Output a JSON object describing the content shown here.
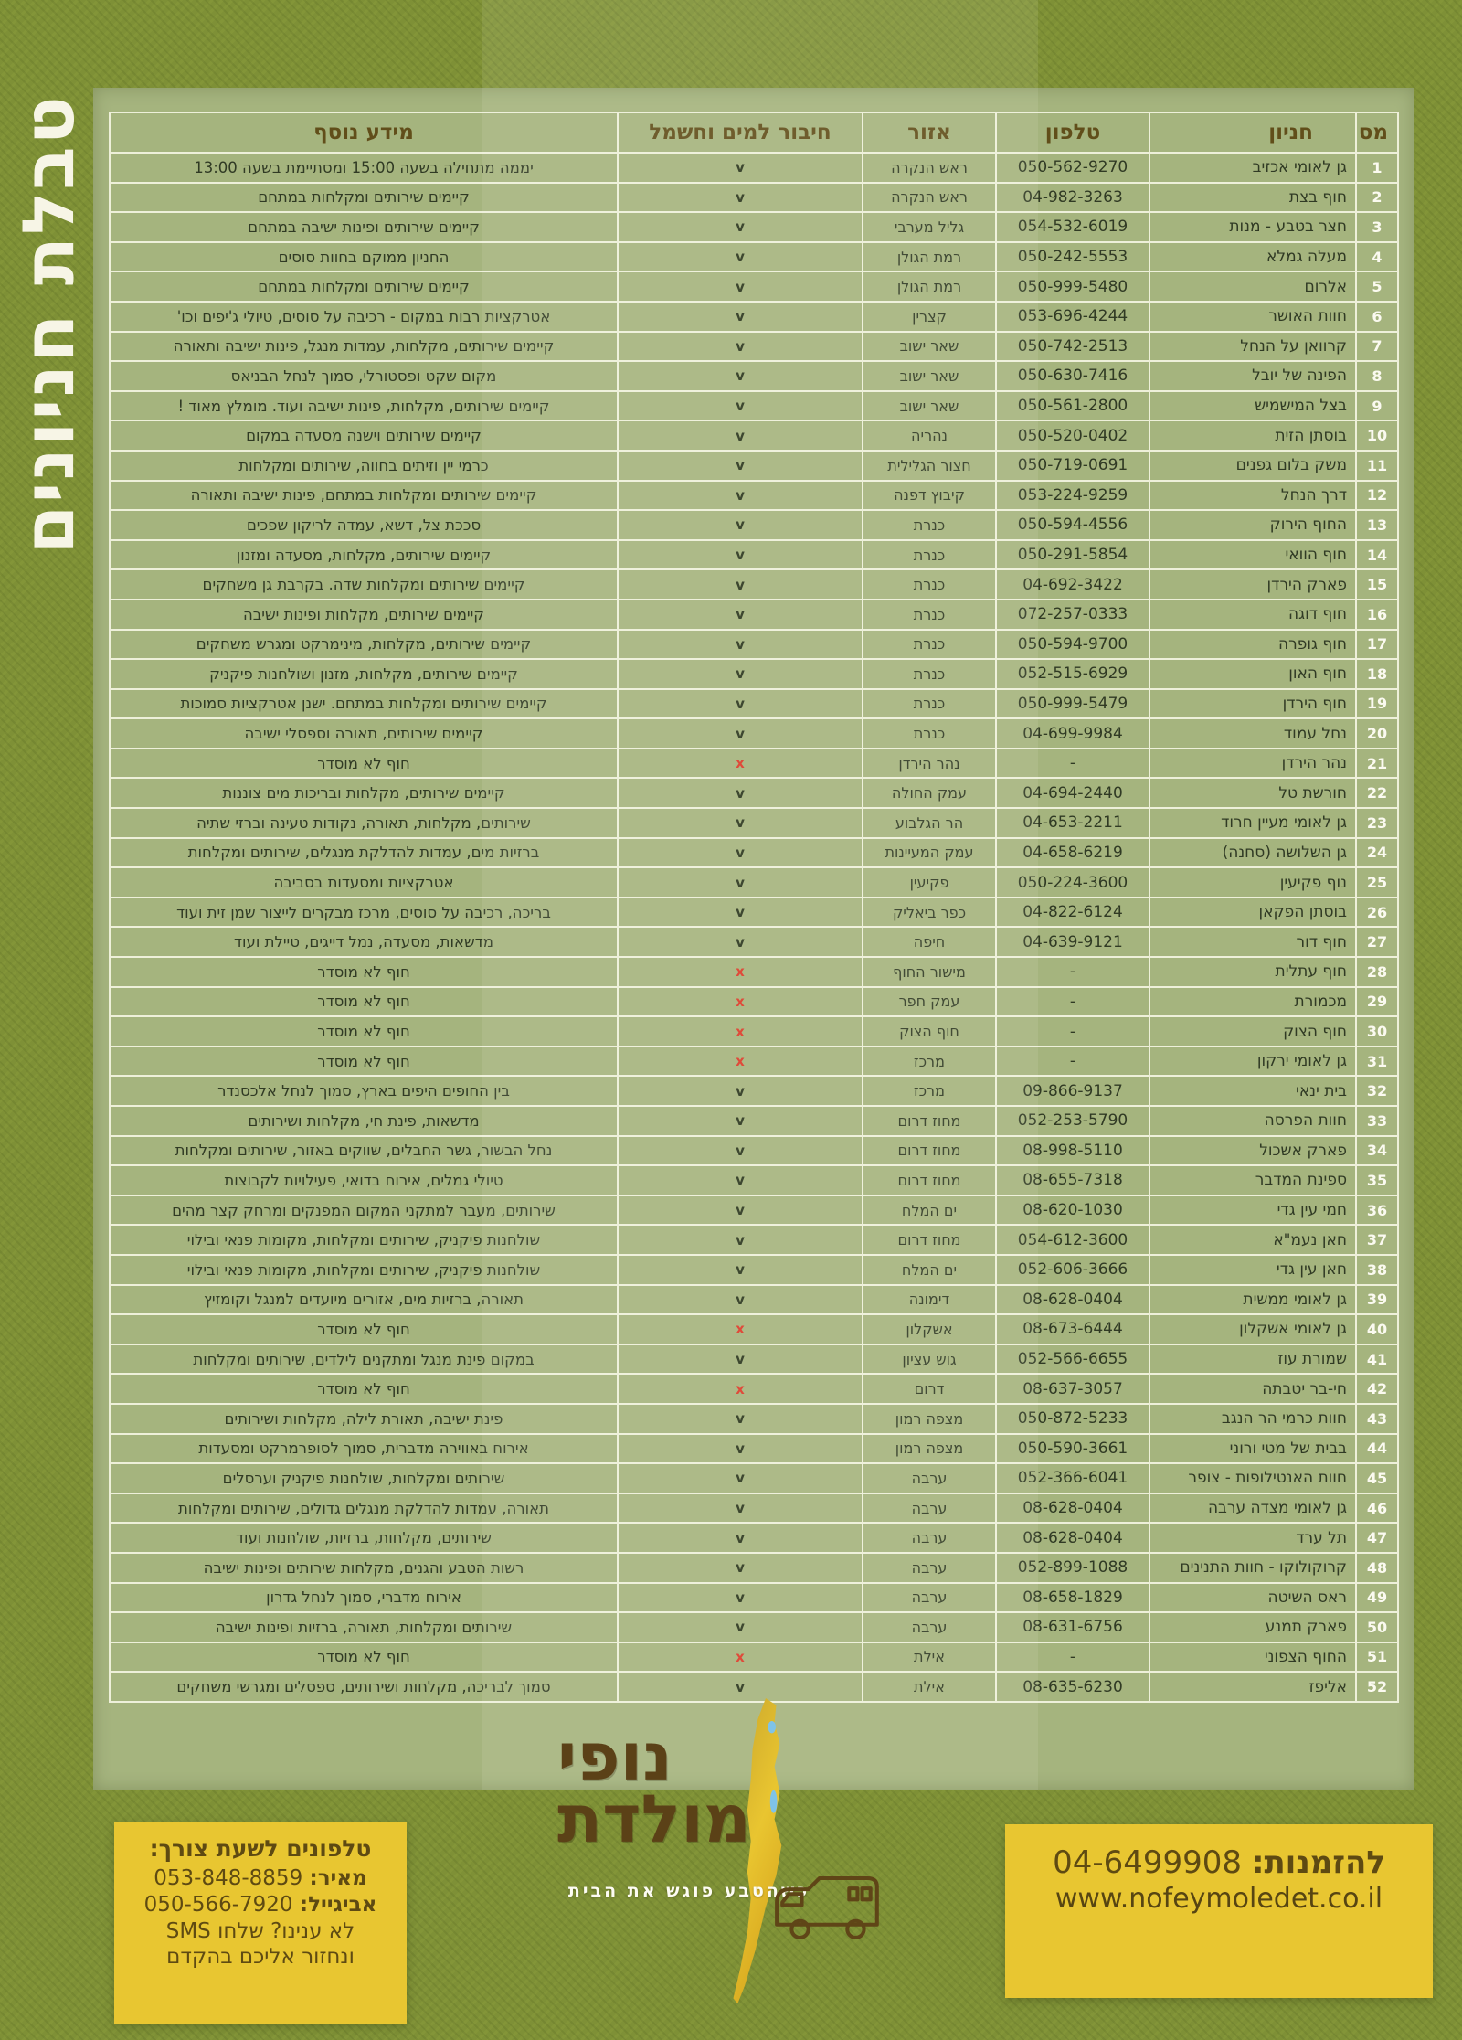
{
  "page": {
    "side_title": "טבלת חניונים"
  },
  "table": {
    "headers": {
      "num": "מס",
      "name": "חניון",
      "phone": "טלפון",
      "region": "אזור",
      "hookup": "חיבור למים וחשמל",
      "info": "מידע נוסף"
    },
    "marks": {
      "yes": "v",
      "no": "x"
    },
    "rows": [
      {
        "num": "1",
        "name": "גן לאומי אכזיב",
        "phone": "050-562-9270",
        "region": "ראש הנקרה",
        "hookup": "v",
        "info": "יממה מתחילה בשעה 15:00 ומסתיימת בשעה 13:00"
      },
      {
        "num": "2",
        "name": "חוף בצת",
        "phone": "04-982-3263",
        "region": "ראש הנקרה",
        "hookup": "v",
        "info": "קיימים שירותים ומקלחות במתחם"
      },
      {
        "num": "3",
        "name": "חצר בטבע - מנות",
        "phone": "054-532-6019",
        "region": "גליל מערבי",
        "hookup": "v",
        "info": "קיימים שירותים ופינות ישיבה במתחם"
      },
      {
        "num": "4",
        "name": "מעלה גמלא",
        "phone": "050-242-5553",
        "region": "רמת הגולן",
        "hookup": "v",
        "info": "החניון ממוקם בחוות סוסים"
      },
      {
        "num": "5",
        "name": "אלרום",
        "phone": "050-999-5480",
        "region": "רמת הגולן",
        "hookup": "v",
        "info": "קיימים שירותים ומקלחות במתחם"
      },
      {
        "num": "6",
        "name": "חוות האושר",
        "phone": "053-696-4244",
        "region": "קצרין",
        "hookup": "v",
        "info": "אטרקציות רבות במקום - רכיבה על סוסים, טיולי ג'יפים וכו'"
      },
      {
        "num": "7",
        "name": "קרוואן על הנחל",
        "phone": "050-742-2513",
        "region": "שאר ישוב",
        "hookup": "v",
        "info": "קיימים שירותים, מקלחות, עמדות מנגל, פינות ישיבה ותאורה"
      },
      {
        "num": "8",
        "name": "הפינה של יובל",
        "phone": "050-630-7416",
        "region": "שאר ישוב",
        "hookup": "v",
        "info": "מקום שקט ופסטורלי, סמוך לנחל הבניאס"
      },
      {
        "num": "9",
        "name": "בצל המישמיש",
        "phone": "050-561-2800",
        "region": "שאר ישוב",
        "hookup": "v",
        "info": "קיימים שירותים, מקלחות, פינות ישיבה ועוד. מומלץ מאוד !"
      },
      {
        "num": "10",
        "name": "בוסתן הזית",
        "phone": "050-520-0402",
        "region": "נהריה",
        "hookup": "v",
        "info": "קיימים שירותים וישנה מסעדה במקום"
      },
      {
        "num": "11",
        "name": "משק בלום גפנים",
        "phone": "050-719-0691",
        "region": "חצור הגלילית",
        "hookup": "v",
        "info": "כרמי יין וזיתים בחווה, שירותים ומקלחות"
      },
      {
        "num": "12",
        "name": "דרך הנחל",
        "phone": "053-224-9259",
        "region": "קיבוץ דפנה",
        "hookup": "v",
        "info": "קיימים שירותים ומקלחות במתחם, פינות ישיבה ותאורה"
      },
      {
        "num": "13",
        "name": "החוף הירוק",
        "phone": "050-594-4556",
        "region": "כנרת",
        "hookup": "v",
        "info": "סככת צל, דשא, עמדה לריקון שפכים"
      },
      {
        "num": "14",
        "name": "חוף הוואי",
        "phone": "050-291-5854",
        "region": "כנרת",
        "hookup": "v",
        "info": "קיימים שירותים, מקלחות, מסעדה ומזנון"
      },
      {
        "num": "15",
        "name": "פארק הירדן",
        "phone": "04-692-3422",
        "region": "כנרת",
        "hookup": "v",
        "info": "קיימים שירותים ומקלחות שדה. בקרבת גן משחקים"
      },
      {
        "num": "16",
        "name": "חוף דוגה",
        "phone": "072-257-0333",
        "region": "כנרת",
        "hookup": "v",
        "info": "קיימים שירותים, מקלחות ופינות ישיבה"
      },
      {
        "num": "17",
        "name": "חוף גופרה",
        "phone": "050-594-9700",
        "region": "כנרת",
        "hookup": "v",
        "info": "קיימים שירותים, מקלחות, מינימרקט ומגרש משחקים"
      },
      {
        "num": "18",
        "name": "חוף האון",
        "phone": "052-515-6929",
        "region": "כנרת",
        "hookup": "v",
        "info": "קיימים שירותים, מקלחות, מזנון ושולחנות פיקניק"
      },
      {
        "num": "19",
        "name": "חוף הירדן",
        "phone": "050-999-5479",
        "region": "כנרת",
        "hookup": "v",
        "info": "קיימים שירותים ומקלחות במתחם. ישנן אטרקציות סמוכות"
      },
      {
        "num": "20",
        "name": "נחל עמוד",
        "phone": "04-699-9984",
        "region": "כנרת",
        "hookup": "v",
        "info": "קיימים שירותים, תאורה וספסלי ישיבה"
      },
      {
        "num": "21",
        "name": "נהר הירדן",
        "phone": "-",
        "region": "נהר הירדן",
        "hookup": "x",
        "info": "חוף לא מוסדר"
      },
      {
        "num": "22",
        "name": "חורשת טל",
        "phone": "04-694-2440",
        "region": "עמק החולה",
        "hookup": "v",
        "info": "קיימים שירותים, מקלחות ובריכות מים צוננות"
      },
      {
        "num": "23",
        "name": "גן לאומי מעיין חרוד",
        "phone": "04-653-2211",
        "region": "הר הגלבוע",
        "hookup": "v",
        "info": "שירותים, מקלחות, תאורה, נקודות טעינה וברזי שתיה"
      },
      {
        "num": "24",
        "name": "גן השלושה (סחנה)",
        "phone": "04-658-6219",
        "region": "עמק המעיינות",
        "hookup": "v",
        "info": "ברזיות מים, עמדות להדלקת מנגלים, שירותים ומקלחות"
      },
      {
        "num": "25",
        "name": "נוף פקיעין",
        "phone": "050-224-3600",
        "region": "פקיעין",
        "hookup": "v",
        "info": "אטרקציות ומסעדות בסביבה"
      },
      {
        "num": "26",
        "name": "בוסתן הפקאן",
        "phone": "04-822-6124",
        "region": "כפר ביאליק",
        "hookup": "v",
        "info": "בריכה, רכיבה על סוסים, מרכז מבקרים לייצור שמן זית ועוד"
      },
      {
        "num": "27",
        "name": "חוף דור",
        "phone": "04-639-9121",
        "region": "חיפה",
        "hookup": "v",
        "info": "מדשאות, מסעדה, נמל דייגים, טיילת ועוד"
      },
      {
        "num": "28",
        "name": "חוף עתלית",
        "phone": "-",
        "region": "מישור החוף",
        "hookup": "x",
        "info": "חוף לא מוסדר"
      },
      {
        "num": "29",
        "name": "מכמורת",
        "phone": "-",
        "region": "עמק חפר",
        "hookup": "x",
        "info": "חוף לא מוסדר"
      },
      {
        "num": "30",
        "name": "חוף הצוק",
        "phone": "-",
        "region": "חוף הצוק",
        "hookup": "x",
        "info": "חוף לא מוסדר"
      },
      {
        "num": "31",
        "name": "גן לאומי ירקון",
        "phone": "-",
        "region": "מרכז",
        "hookup": "x",
        "info": "חוף לא מוסדר"
      },
      {
        "num": "32",
        "name": "בית ינאי",
        "phone": "09-866-9137",
        "region": "מרכז",
        "hookup": "v",
        "info": "בין החופים היפים בארץ, סמוך לנחל אלכסנדר"
      },
      {
        "num": "33",
        "name": "חוות הפרסה",
        "phone": "052-253-5790",
        "region": "מחוז דרום",
        "hookup": "v",
        "info": "מדשאות, פינת חי, מקלחות ושירותים"
      },
      {
        "num": "34",
        "name": "פארק אשכול",
        "phone": "08-998-5110",
        "region": "מחוז דרום",
        "hookup": "v",
        "info": "נחל הבשור, גשר החבלים, שווקים באזור, שירותים ומקלחות"
      },
      {
        "num": "35",
        "name": "ספינת המדבר",
        "phone": "08-655-7318",
        "region": "מחוז דרום",
        "hookup": "v",
        "info": "טיולי גמלים, אירוח בדואי, פעילויות לקבוצות"
      },
      {
        "num": "36",
        "name": "חמי עין גדי",
        "phone": "08-620-1030",
        "region": "ים המלח",
        "hookup": "v",
        "info": "שירותים, מעבר למתקני המקום המפנקים ומרחק קצר מהים"
      },
      {
        "num": "37",
        "name": "חאן נעמ\"א",
        "phone": "054-612-3600",
        "region": "מחוז דרום",
        "hookup": "v",
        "info": "שולחנות פיקניק, שירותים ומקלחות, מקומות פנאי ובילוי"
      },
      {
        "num": "38",
        "name": "חאן עין גדי",
        "phone": "052-606-3666",
        "region": "ים המלח",
        "hookup": "v",
        "info": "שולחנות פיקניק, שירותים ומקלחות, מקומות פנאי ובילוי"
      },
      {
        "num": "39",
        "name": "גן לאומי ממשית",
        "phone": "08-628-0404",
        "region": "דימונה",
        "hookup": "v",
        "info": "תאורה, ברזיות מים, אזורים מיועדים למנגל וקומזיץ"
      },
      {
        "num": "40",
        "name": "גן לאומי אשקלון",
        "phone": "08-673-6444",
        "region": "אשקלון",
        "hookup": "x",
        "info": "חוף לא מוסדר"
      },
      {
        "num": "41",
        "name": "שמורת עוז",
        "phone": "052-566-6655",
        "region": "גוש עציון",
        "hookup": "v",
        "info": "במקום פינת מנגל ומתקנים לילדים, שירותים ומקלחות"
      },
      {
        "num": "42",
        "name": "חי-בר יטבתה",
        "phone": "08-637-3057",
        "region": "דרום",
        "hookup": "x",
        "info": "חוף לא מוסדר"
      },
      {
        "num": "43",
        "name": "חוות כרמי הר הנגב",
        "phone": "050-872-5233",
        "region": "מצפה רמון",
        "hookup": "v",
        "info": "פינת ישיבה, תאורת לילה, מקלחות ושירותים"
      },
      {
        "num": "44",
        "name": "בבית של מטי ורוני",
        "phone": "050-590-3661",
        "region": "מצפה רמון",
        "hookup": "v",
        "info": "אירוח באווירה מדברית, סמוך לסופרמרקט ומסעדות"
      },
      {
        "num": "45",
        "name": "חוות האנטילופות - צופר",
        "phone": "052-366-6041",
        "region": "ערבה",
        "hookup": "v",
        "info": "שירותים ומקלחות, שולחנות פיקניק וערסלים"
      },
      {
        "num": "46",
        "name": "גן לאומי מצדה ערבה",
        "phone": "08-628-0404",
        "region": "ערבה",
        "hookup": "v",
        "info": "תאורה, עמדות להדלקת מנגלים גדולים, שירותים ומקלחות"
      },
      {
        "num": "47",
        "name": "תל ערד",
        "phone": "08-628-0404",
        "region": "ערבה",
        "hookup": "v",
        "info": "שירותים, מקלחות, ברזיות, שולחנות ועוד"
      },
      {
        "num": "48",
        "name": "קרוקולוקו - חוות התנינים",
        "phone": "052-899-1088",
        "region": "ערבה",
        "hookup": "v",
        "info": "רשות הטבע והגנים, מקלחות שירותים ופינות ישיבה"
      },
      {
        "num": "49",
        "name": "ראס השיטה",
        "phone": "08-658-1829",
        "region": "ערבה",
        "hookup": "v",
        "info": "אירוח מדברי, סמוך לנחל גדרון"
      },
      {
        "num": "50",
        "name": "פארק תמנע",
        "phone": "08-631-6756",
        "region": "ערבה",
        "hookup": "v",
        "info": "שירותים ומקלחות, תאורה, ברזיות ופינות ישיבה"
      },
      {
        "num": "51",
        "name": "החוף הצפוני",
        "phone": "-",
        "region": "אילת",
        "hookup": "x",
        "info": "חוף לא מוסדר"
      },
      {
        "num": "52",
        "name": "אליפז",
        "phone": "08-635-6230",
        "region": "אילת",
        "hookup": "v",
        "info": "סמוך לבריכה, מקלחות ושירותים, ספסלים ומגרשי משחקים"
      }
    ]
  },
  "footer": {
    "logo": {
      "title_line1": "נופי",
      "title_line2": "מולדת",
      "tagline": "כשהטבע פוגש את הבית"
    },
    "emergency": {
      "title": "טלפונים לשעת צורך:",
      "contacts": [
        {
          "label": "מאיר:",
          "phone": "053-848-8859"
        },
        {
          "label": "אביגייל:",
          "phone": "050-566-7920"
        }
      ],
      "note_line1": "לא ענינו? שלחו SMS",
      "note_line2": "ונחזור אליכם בהקדם"
    },
    "orders": {
      "label": "להזמנות:",
      "phone": "04-6499908",
      "website": "www.nofeymoledet.co.il"
    }
  },
  "colors": {
    "page_green": "#7e9036",
    "panel_sage": "#a5b47e",
    "border_cream": "#eef0da",
    "header_brown": "#614e1a",
    "accent_yellow": "#e8c631",
    "check_dark": "#2a351d",
    "cross_red": "#dc3a28"
  }
}
